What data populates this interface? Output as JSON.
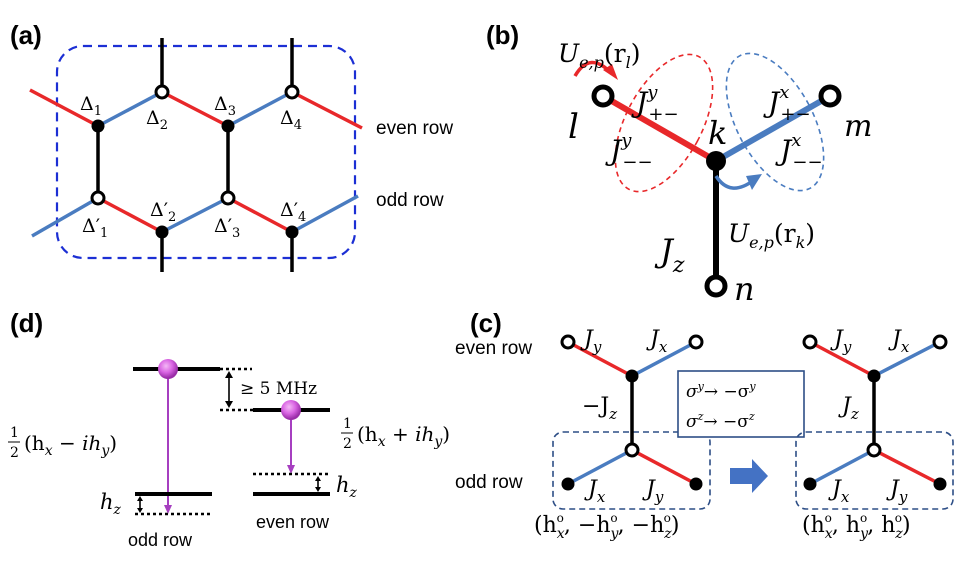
{
  "panels": {
    "a": {
      "label": "(a)",
      "even_row": "even row",
      "odd_row": "odd row",
      "sites_top": [
        "Δ",
        "Δ",
        "Δ",
        "Δ"
      ],
      "sites_top_sub": [
        "1",
        "2",
        "3",
        "4"
      ],
      "sites_bottom": [
        "Δ′",
        "Δ′",
        "Δ′",
        "Δ′"
      ],
      "sites_bottom_sub": [
        "1",
        "2",
        "3",
        "4"
      ]
    },
    "b": {
      "label": "(b)",
      "U_l": "U",
      "U_l_sub": "e,p",
      "U_l_arg": "(r",
      "U_l_arg_sub": "l",
      "U_l_close": ")",
      "U_k": "U",
      "U_k_sub": "e,p",
      "U_k_arg": "(r",
      "U_k_arg_sub": "k",
      "U_k_close": ")",
      "site_l": "l",
      "site_k": "k",
      "site_m": "m",
      "site_n": "n",
      "J": "J",
      "Jy_pm_sup": "y",
      "Jy_pm_sub": "+−",
      "Jy_mm_sup": "y",
      "Jy_mm_sub": "−−",
      "Jx_pm_sup": "x",
      "Jx_pm_sub": "+−",
      "Jx_mm_sup": "x",
      "Jx_mm_sub": "−−",
      "Jz_sub": "z"
    },
    "c": {
      "label": "(c)",
      "even_row": "even row",
      "odd_row": "odd row",
      "J": "J",
      "y": "y",
      "x": "x",
      "z": "z",
      "minus_Jz": "−J",
      "rule1": "σ",
      "rule1_sup": "y",
      "rule1_arrow": "→ −σ",
      "rule1_sup2": "y",
      "rule2": "σ",
      "rule2_sup": "z",
      "rule2_arrow": "→ −σ",
      "rule2_sup2": "z",
      "field_left": "(h",
      "field_left_mid1": ", −h",
      "field_left_mid2": ", −h",
      "field_right": "(h",
      "field_right_mid1": ", h",
      "field_right_mid2": ", h",
      "o": "o",
      "close": ")"
    },
    "d": {
      "label": "(d)",
      "gap": "≥ 5 MHz",
      "half": "1",
      "half_den": "2",
      "left_expr": "(h",
      "left_expr2": " − ih",
      "right_expr": "(h",
      "right_expr2": " + ih",
      "x": "x",
      "y": "y",
      "z": "z",
      "h": "h",
      "odd_row": "odd row",
      "even_row": "even row"
    }
  }
}
